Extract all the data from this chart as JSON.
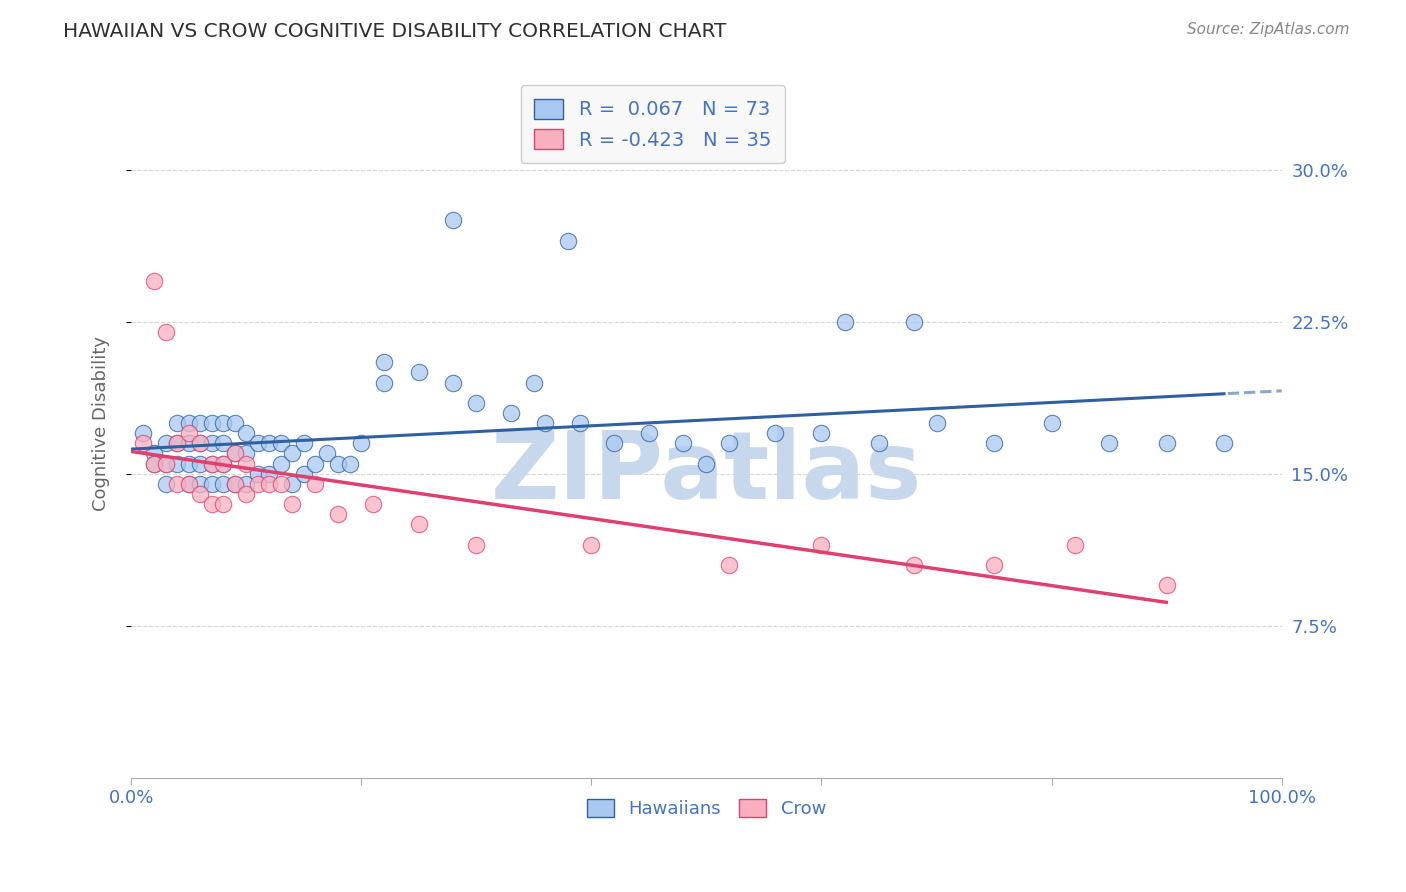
{
  "title": "HAWAIIAN VS CROW COGNITIVE DISABILITY CORRELATION CHART",
  "source": "Source: ZipAtlas.com",
  "ylabel": "Cognitive Disability",
  "ytick_labels": [
    "7.5%",
    "15.0%",
    "22.5%",
    "30.0%"
  ],
  "ytick_values": [
    0.075,
    0.15,
    0.225,
    0.3
  ],
  "xlim": [
    0.0,
    1.0
  ],
  "ylim": [
    0.0,
    0.35
  ],
  "hawaiian_R": 0.067,
  "hawaiian_N": 73,
  "crow_R": -0.423,
  "crow_N": 35,
  "hawaiian_color": "#A8C8F0",
  "hawaiian_line_color": "#3060A0",
  "crow_color": "#F8B0C0",
  "crow_line_color": "#E04070",
  "watermark": "ZIPatlas",
  "watermark_color": "#C8D8EC",
  "background_color": "#FFFFFF",
  "legend_box_color": "#F8F8F8",
  "title_color": "#303030",
  "axis_label_color": "#4472C4",
  "grid_color": "#CCCCCC",
  "hawaiian_x": [
    0.01,
    0.02,
    0.02,
    0.03,
    0.03,
    0.03,
    0.04,
    0.04,
    0.04,
    0.05,
    0.05,
    0.05,
    0.05,
    0.06,
    0.06,
    0.06,
    0.06,
    0.07,
    0.07,
    0.07,
    0.07,
    0.08,
    0.08,
    0.08,
    0.08,
    0.09,
    0.09,
    0.09,
    0.1,
    0.1,
    0.1,
    0.11,
    0.11,
    0.12,
    0.12,
    0.13,
    0.13,
    0.14,
    0.14,
    0.15,
    0.15,
    0.16,
    0.17,
    0.18,
    0.19,
    0.2,
    0.22,
    0.25,
    0.28,
    0.3,
    0.33,
    0.36,
    0.39,
    0.42,
    0.45,
    0.48,
    0.52,
    0.56,
    0.6,
    0.65,
    0.7,
    0.75,
    0.8,
    0.85,
    0.9,
    0.95,
    0.28,
    0.38,
    0.5,
    0.62,
    0.68,
    0.22,
    0.35
  ],
  "hawaiian_y": [
    0.17,
    0.16,
    0.155,
    0.165,
    0.155,
    0.145,
    0.175,
    0.165,
    0.155,
    0.175,
    0.165,
    0.155,
    0.145,
    0.175,
    0.165,
    0.155,
    0.145,
    0.175,
    0.165,
    0.155,
    0.145,
    0.175,
    0.165,
    0.155,
    0.145,
    0.175,
    0.16,
    0.145,
    0.17,
    0.16,
    0.145,
    0.165,
    0.15,
    0.165,
    0.15,
    0.165,
    0.155,
    0.16,
    0.145,
    0.165,
    0.15,
    0.155,
    0.16,
    0.155,
    0.155,
    0.165,
    0.195,
    0.2,
    0.195,
    0.185,
    0.18,
    0.175,
    0.175,
    0.165,
    0.17,
    0.165,
    0.165,
    0.17,
    0.17,
    0.165,
    0.175,
    0.165,
    0.175,
    0.165,
    0.165,
    0.165,
    0.275,
    0.265,
    0.155,
    0.225,
    0.225,
    0.205,
    0.195
  ],
  "crow_x": [
    0.01,
    0.02,
    0.02,
    0.03,
    0.03,
    0.04,
    0.04,
    0.05,
    0.05,
    0.06,
    0.06,
    0.07,
    0.07,
    0.08,
    0.08,
    0.09,
    0.09,
    0.1,
    0.1,
    0.11,
    0.12,
    0.13,
    0.14,
    0.16,
    0.18,
    0.21,
    0.25,
    0.3,
    0.4,
    0.52,
    0.6,
    0.68,
    0.75,
    0.82,
    0.9
  ],
  "crow_y": [
    0.165,
    0.155,
    0.245,
    0.155,
    0.22,
    0.165,
    0.145,
    0.17,
    0.145,
    0.165,
    0.14,
    0.155,
    0.135,
    0.155,
    0.135,
    0.16,
    0.145,
    0.155,
    0.14,
    0.145,
    0.145,
    0.145,
    0.135,
    0.145,
    0.13,
    0.135,
    0.125,
    0.115,
    0.115,
    0.105,
    0.115,
    0.105,
    0.105,
    0.115,
    0.095
  ]
}
